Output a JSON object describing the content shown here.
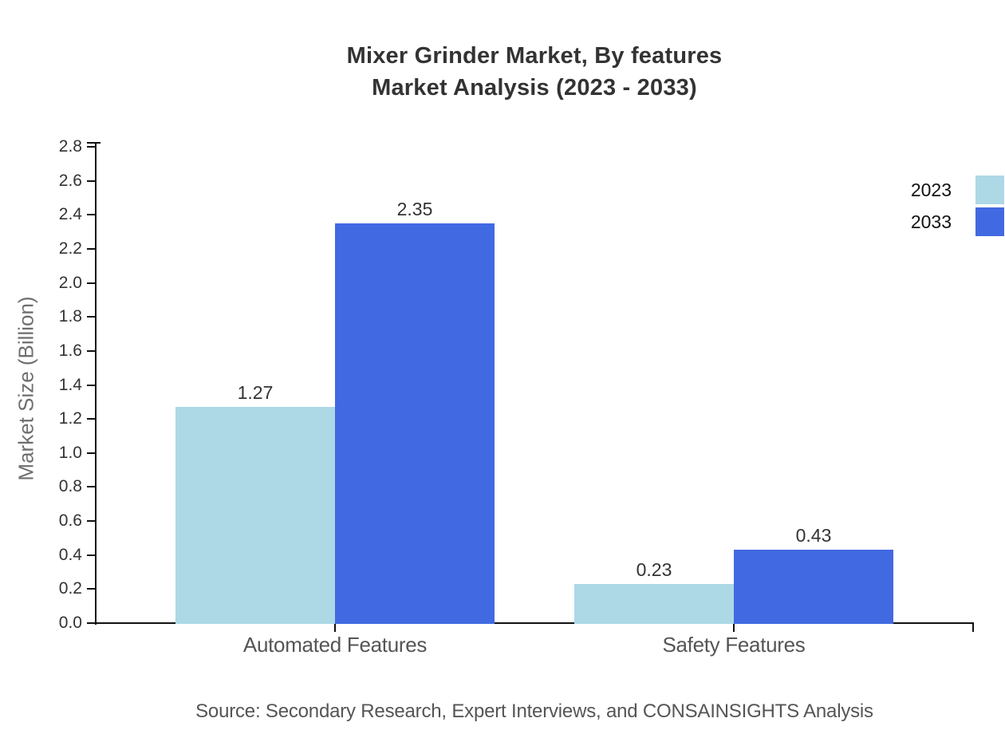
{
  "title": {
    "line1": "Mixer Grinder Market, By features",
    "line2": "Market Analysis (2023 - 2033)"
  },
  "source": "Source: Secondary Research, Expert Interviews, and CONSAINSIGHTS Analysis",
  "colors": {
    "series_2023": "#ADD8E6",
    "series_2033": "#4169E1",
    "axis": "#111111",
    "title_text": "#333333",
    "muted_text": "#555555"
  },
  "chart_data": {
    "type": "bar",
    "title": "Mixer Grinder Market, By features Market Analysis (2023 - 2033)",
    "categories": [
      "Automated Features",
      "Safety Features"
    ],
    "series": [
      {
        "name": "2023",
        "color": "#ADD8E6",
        "values": [
          1.27,
          0.23
        ]
      },
      {
        "name": "2033",
        "color": "#4169E1",
        "values": [
          2.35,
          0.43
        ]
      }
    ],
    "xlabel": "",
    "ylabel": "Market Size (Billion)",
    "ylim": [
      0,
      2.8
    ],
    "ytick_step": 0.2,
    "grid": false,
    "legend_position": "right-outside",
    "value_labels": true,
    "value_label_format": "0.00"
  }
}
